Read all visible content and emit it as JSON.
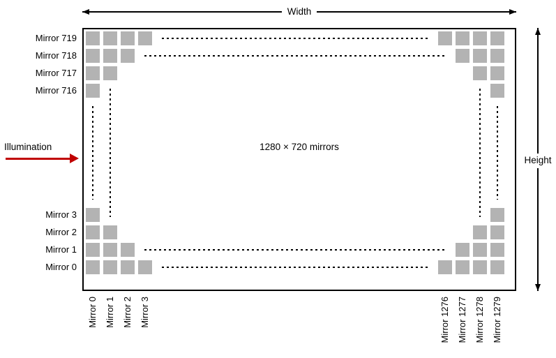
{
  "diagram": {
    "center_label": "1280 × 720 mirrors",
    "width_label": "Width",
    "height_label": "Height",
    "illumination_label": "Illumination",
    "array_size": {
      "columns": 1280,
      "rows": 720
    },
    "row_labels_top": [
      "Mirror 719",
      "Mirror 718",
      "Mirror 717",
      "Mirror 716"
    ],
    "row_labels_bottom": [
      "Mirror 3",
      "Mirror 2",
      "Mirror 1",
      "Mirror 0"
    ],
    "col_labels_left": [
      "Mirror 0",
      "Mirror 1",
      "Mirror 2",
      "Mirror 3"
    ],
    "col_labels_right": [
      "Mirror 1276",
      "Mirror 1277",
      "Mirror 1278",
      "Mirror 1279"
    ],
    "corner_stair_counts": [
      4,
      3,
      2,
      1
    ],
    "colors": {
      "mirror": "#b3b3b3",
      "illumination_arrow": "#c00000",
      "line": "#000000"
    }
  }
}
